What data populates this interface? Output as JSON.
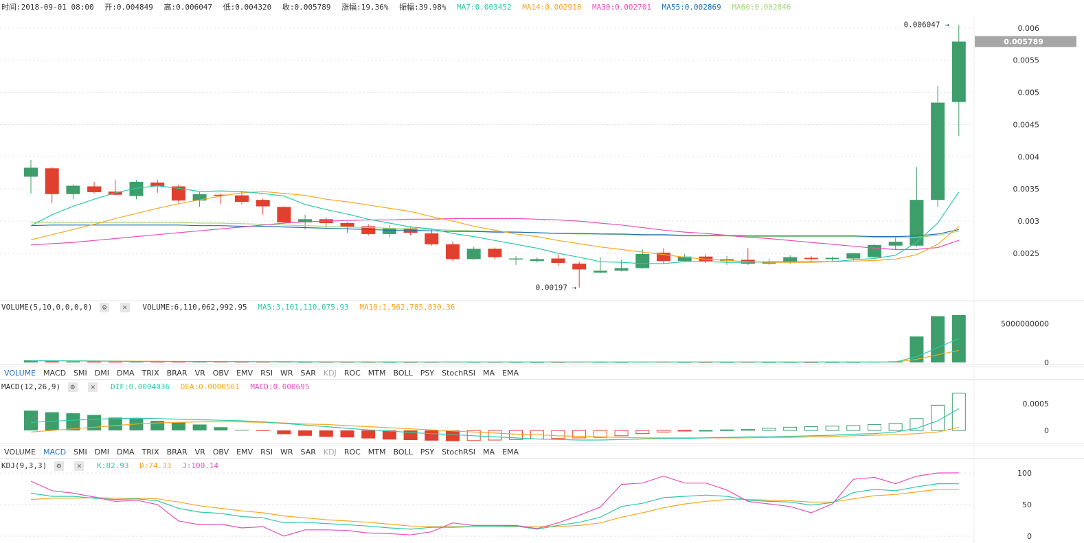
{
  "info": {
    "time": "时间:2018-09-01 08:00",
    "open": "开:0.004849",
    "high": "高:0.006047",
    "low": "低:0.004320",
    "close": "收:0.005789",
    "change": "涨幅:19.36%",
    "amplitude": "振幅:39.98%",
    "ma7": "MA7:0.003452",
    "ma14": "MA14:0.002918",
    "ma30": "MA30:0.002701",
    "ma55": "MA55:0.002869",
    "ma60": "MA60:0.002846"
  },
  "colors": {
    "up": "#3d9e6b",
    "down": "#e0402e",
    "ma7": "#2ec7a8",
    "ma14": "#f5a623",
    "ma30": "#e74fbb",
    "ma55": "#1f6fb5",
    "ma60": "#a3d977",
    "kdj_k": "#2ec7a8",
    "kdj_d": "#f5a623",
    "kdj_j": "#e74fbb"
  },
  "volume_panel": {
    "title": "VOLUME(5,10,0,0,0,0)",
    "volume": "VOLUME:6,110,062,992.95",
    "ma5": "MA5:3,101,110,075.93",
    "ma10": "MA10:1,562,785,830.36"
  },
  "macd_panel": {
    "title": "MACD(12,26,9)",
    "dif": "DIF:0.0004036",
    "dea": "DEA:0.0000561",
    "macd": "MACD:0.000695"
  },
  "kdj_panel": {
    "title": "KDJ(9,3,3)",
    "k": "K:82.93",
    "d": "D:74.33",
    "j": "J:100.14"
  },
  "tabs1": [
    "VOLUME",
    "MACD",
    "SMI",
    "DMI",
    "DMA",
    "TRIX",
    "BRAR",
    "VR",
    "OBV",
    "EMV",
    "RSI",
    "WR",
    "SAR",
    "KDJ",
    "ROC",
    "MTM",
    "BOLL",
    "PSY",
    "StochRSI",
    "MA",
    "EMA"
  ],
  "tabs1_active": "VOLUME",
  "tabs2": [
    "VOLUME",
    "MACD",
    "SMI",
    "DMI",
    "DMA",
    "TRIX",
    "BRAR",
    "VR",
    "OBV",
    "EMV",
    "RSI",
    "WR",
    "SAR",
    "KDJ",
    "ROC",
    "MTM",
    "BOLL",
    "PSY",
    "StochRSI",
    "MA",
    "EMA"
  ],
  "tabs2_active": "MACD",
  "tabs_disabled": [
    "KDJ"
  ],
  "icons": {
    "settings": "gear-icon",
    "close": "close-icon"
  },
  "chart_data": [
    {
      "type": "candlestick",
      "y_ticks": [
        "0.0025",
        "0.003",
        "0.0035",
        "0.004",
        "0.0045",
        "0.005",
        "0.0055",
        "0.006"
      ],
      "ylim": [
        0.00185,
        0.0062
      ],
      "current_price": "0.005789",
      "max_label": "0.006047",
      "min_label": "0.00197",
      "candles": [
        {
          "o": 0.00369,
          "h": 0.00395,
          "l": 0.00343,
          "c": 0.00383
        },
        {
          "o": 0.00382,
          "h": 0.00384,
          "l": 0.00328,
          "c": 0.00342
        },
        {
          "o": 0.00342,
          "h": 0.00357,
          "l": 0.00334,
          "c": 0.00355
        },
        {
          "o": 0.00354,
          "h": 0.00361,
          "l": 0.00343,
          "c": 0.00345
        },
        {
          "o": 0.00346,
          "h": 0.00364,
          "l": 0.0034,
          "c": 0.00341
        },
        {
          "o": 0.00339,
          "h": 0.00364,
          "l": 0.00334,
          "c": 0.00361
        },
        {
          "o": 0.0036,
          "h": 0.00364,
          "l": 0.00344,
          "c": 0.00354
        },
        {
          "o": 0.00354,
          "h": 0.00357,
          "l": 0.00328,
          "c": 0.00332
        },
        {
          "o": 0.00332,
          "h": 0.00345,
          "l": 0.00322,
          "c": 0.00342
        },
        {
          "o": 0.00341,
          "h": 0.00343,
          "l": 0.00327,
          "c": 0.0034
        },
        {
          "o": 0.0034,
          "h": 0.00347,
          "l": 0.00326,
          "c": 0.0033
        },
        {
          "o": 0.00333,
          "h": 0.00335,
          "l": 0.0031,
          "c": 0.00323
        },
        {
          "o": 0.00322,
          "h": 0.00323,
          "l": 0.00296,
          "c": 0.00298
        },
        {
          "o": 0.00298,
          "h": 0.0031,
          "l": 0.00287,
          "c": 0.00303
        },
        {
          "o": 0.00303,
          "h": 0.00306,
          "l": 0.0029,
          "c": 0.00297
        },
        {
          "o": 0.00297,
          "h": 0.00299,
          "l": 0.00282,
          "c": 0.00291
        },
        {
          "o": 0.00292,
          "h": 0.00295,
          "l": 0.00278,
          "c": 0.0028
        },
        {
          "o": 0.0028,
          "h": 0.00294,
          "l": 0.00275,
          "c": 0.00289
        },
        {
          "o": 0.00289,
          "h": 0.00292,
          "l": 0.00278,
          "c": 0.00282
        },
        {
          "o": 0.00281,
          "h": 0.00287,
          "l": 0.00262,
          "c": 0.00264
        },
        {
          "o": 0.00264,
          "h": 0.00268,
          "l": 0.00238,
          "c": 0.00241
        },
        {
          "o": 0.00241,
          "h": 0.0026,
          "l": 0.0024,
          "c": 0.00257
        },
        {
          "o": 0.00257,
          "h": 0.00259,
          "l": 0.0024,
          "c": 0.00244
        },
        {
          "o": 0.00242,
          "h": 0.00246,
          "l": 0.00232,
          "c": 0.00242
        },
        {
          "o": 0.00238,
          "h": 0.00244,
          "l": 0.00236,
          "c": 0.00241
        },
        {
          "o": 0.00242,
          "h": 0.00248,
          "l": 0.0023,
          "c": 0.00235
        },
        {
          "o": 0.00234,
          "h": 0.00237,
          "l": 0.00197,
          "c": 0.00225
        },
        {
          "o": 0.0022,
          "h": 0.00244,
          "l": 0.00219,
          "c": 0.00223
        },
        {
          "o": 0.00223,
          "h": 0.0024,
          "l": 0.00222,
          "c": 0.00227
        },
        {
          "o": 0.00227,
          "h": 0.00256,
          "l": 0.00226,
          "c": 0.00249
        },
        {
          "o": 0.00251,
          "h": 0.00258,
          "l": 0.00234,
          "c": 0.00238
        },
        {
          "o": 0.00238,
          "h": 0.00249,
          "l": 0.00237,
          "c": 0.00245
        },
        {
          "o": 0.00245,
          "h": 0.00248,
          "l": 0.00235,
          "c": 0.00238
        },
        {
          "o": 0.00238,
          "h": 0.00246,
          "l": 0.00232,
          "c": 0.00241
        },
        {
          "o": 0.0024,
          "h": 0.00258,
          "l": 0.00232,
          "c": 0.00234
        },
        {
          "o": 0.00234,
          "h": 0.00242,
          "l": 0.00232,
          "c": 0.00237
        },
        {
          "o": 0.00237,
          "h": 0.00247,
          "l": 0.00234,
          "c": 0.00244
        },
        {
          "o": 0.00243,
          "h": 0.00246,
          "l": 0.00238,
          "c": 0.00241
        },
        {
          "o": 0.00241,
          "h": 0.00245,
          "l": 0.00238,
          "c": 0.00243
        },
        {
          "o": 0.00242,
          "h": 0.00251,
          "l": 0.00239,
          "c": 0.0025
        },
        {
          "o": 0.00244,
          "h": 0.00264,
          "l": 0.00243,
          "c": 0.00263
        },
        {
          "o": 0.00262,
          "h": 0.00275,
          "l": 0.00256,
          "c": 0.00268
        },
        {
          "o": 0.00262,
          "h": 0.00384,
          "l": 0.0026,
          "c": 0.00333
        },
        {
          "o": 0.00333,
          "h": 0.0051,
          "l": 0.00322,
          "c": 0.00484
        },
        {
          "o": 0.00485,
          "h": 0.006047,
          "l": 0.00432,
          "c": 0.005789
        }
      ],
      "ma7": [
        0.00293,
        0.0031,
        0.00323,
        0.00334,
        0.00344,
        0.00351,
        0.00355,
        0.00351,
        0.00346,
        0.00347,
        0.00346,
        0.00343,
        0.00339,
        0.00326,
        0.00318,
        0.00311,
        0.00303,
        0.00297,
        0.00291,
        0.00288,
        0.00281,
        0.00276,
        0.0027,
        0.00264,
        0.00258,
        0.0025,
        0.00244,
        0.00237,
        0.00236,
        0.00234,
        0.00234,
        0.00237,
        0.00237,
        0.00236,
        0.00236,
        0.00237,
        0.00237,
        0.00237,
        0.00237,
        0.0024,
        0.00242,
        0.00247,
        0.00267,
        0.00297,
        0.003452
      ],
      "ma14": [
        0.00271,
        0.00279,
        0.00287,
        0.00295,
        0.00304,
        0.00312,
        0.0032,
        0.00327,
        0.00333,
        0.00339,
        0.00344,
        0.00346,
        0.00343,
        0.0034,
        0.00334,
        0.0033,
        0.00325,
        0.0032,
        0.00315,
        0.00307,
        0.003,
        0.00292,
        0.00286,
        0.0028,
        0.00276,
        0.0027,
        0.00265,
        0.0026,
        0.00256,
        0.00252,
        0.00248,
        0.00244,
        0.00241,
        0.00239,
        0.00237,
        0.00236,
        0.00236,
        0.00236,
        0.00237,
        0.00238,
        0.00239,
        0.00241,
        0.00248,
        0.00264,
        0.002918
      ],
      "ma30": [
        0.00263,
        0.00265,
        0.00267,
        0.0027,
        0.00273,
        0.00276,
        0.00279,
        0.00282,
        0.00285,
        0.00288,
        0.00291,
        0.00294,
        0.00297,
        0.00299,
        0.003,
        0.00301,
        0.00302,
        0.00302,
        0.00303,
        0.00303,
        0.00304,
        0.00304,
        0.00304,
        0.00304,
        0.00303,
        0.00302,
        0.003,
        0.00297,
        0.00294,
        0.0029,
        0.00286,
        0.00283,
        0.00281,
        0.00278,
        0.00275,
        0.00273,
        0.0027,
        0.00267,
        0.00264,
        0.00261,
        0.00258,
        0.00256,
        0.00256,
        0.00259,
        0.002701
      ],
      "ma55": [
        0.00293,
        0.00294,
        0.00294,
        0.00294,
        0.00294,
        0.00294,
        0.00294,
        0.00294,
        0.00293,
        0.00293,
        0.00292,
        0.00292,
        0.00291,
        0.0029,
        0.00289,
        0.00288,
        0.00287,
        0.00286,
        0.00286,
        0.00285,
        0.00284,
        0.00284,
        0.00283,
        0.00283,
        0.00282,
        0.00281,
        0.00281,
        0.0028,
        0.0028,
        0.00279,
        0.00279,
        0.00278,
        0.00278,
        0.00278,
        0.00277,
        0.00277,
        0.00277,
        0.00277,
        0.00277,
        0.00277,
        0.00276,
        0.00276,
        0.00277,
        0.0028,
        0.002869
      ],
      "ma60": [
        0.00298,
        0.00298,
        0.00298,
        0.00298,
        0.00298,
        0.00298,
        0.00298,
        0.00298,
        0.00297,
        0.00297,
        0.00296,
        0.00295,
        0.00294,
        0.00293,
        0.00292,
        0.00291,
        0.0029,
        0.00289,
        0.00288,
        0.00287,
        0.00286,
        0.00285,
        0.00284,
        0.00283,
        0.00282,
        0.00281,
        0.0028,
        0.0028,
        0.00279,
        0.00278,
        0.00278,
        0.00277,
        0.00277,
        0.00277,
        0.00276,
        0.00276,
        0.00276,
        0.00276,
        0.00276,
        0.00276,
        0.00275,
        0.00275,
        0.00275,
        0.00278,
        0.002846
      ]
    },
    {
      "type": "bar",
      "title": "VOLUME",
      "y_ticks": [
        "0",
        "5000000000"
      ],
      "ylim": [
        0,
        6200000000
      ],
      "volume": [
        280000000.0,
        160000000.0,
        130000000.0,
        120000000.0,
        110000000.0,
        130000000.0,
        120000000.0,
        120000000.0,
        110000000.0,
        90000000.0,
        80000000.0,
        80000000.0,
        90000000.0,
        60000000.0,
        60000000.0,
        60000000.0,
        60000000.0,
        50000000.0,
        50000000.0,
        60000000.0,
        80000000.0,
        60000000.0,
        60000000.0,
        50000000.0,
        40000000.0,
        50000000.0,
        80000000.0,
        60000000.0,
        50000000.0,
        80000000.0,
        70000000.0,
        50000000.0,
        50000000.0,
        50000000.0,
        60000000.0,
        40000000.0,
        50000000.0,
        40000000.0,
        40000000.0,
        50000000.0,
        80000000.0,
        150000000.0,
        3350000000.0,
        5970000000.0,
        6110000000.0
      ],
      "ma5": [
        240000000.0,
        220000000.0,
        200000000.0,
        180000000.0,
        160000000.0,
        130000000.0,
        120000000.0,
        120000000.0,
        120000000.0,
        110000000.0,
        100000000.0,
        90000000.0,
        90000000.0,
        80000000.0,
        70000000.0,
        70000000.0,
        60000000.0,
        60000000.0,
        60000000.0,
        60000000.0,
        60000000.0,
        60000000.0,
        60000000.0,
        60000000.0,
        60000000.0,
        60000000.0,
        60000000.0,
        60000000.0,
        60000000.0,
        60000000.0,
        60000000.0,
        60000000.0,
        60000000.0,
        60000000.0,
        60000000.0,
        60000000.0,
        50000000.0,
        50000000.0,
        50000000.0,
        50000000.0,
        50000000.0,
        70000000.0,
        740000000.0,
        1900000000.0,
        3100000000.0
      ],
      "ma10": [
        220000000.0,
        210000000.0,
        200000000.0,
        190000000.0,
        180000000.0,
        160000000.0,
        140000000.0,
        130000000.0,
        120000000.0,
        120000000.0,
        110000000.0,
        100000000.0,
        100000000.0,
        90000000.0,
        80000000.0,
        80000000.0,
        70000000.0,
        70000000.0,
        60000000.0,
        60000000.0,
        60000000.0,
        60000000.0,
        60000000.0,
        60000000.0,
        60000000.0,
        60000000.0,
        60000000.0,
        60000000.0,
        60000000.0,
        60000000.0,
        60000000.0,
        60000000.0,
        60000000.0,
        60000000.0,
        60000000.0,
        60000000.0,
        60000000.0,
        60000000.0,
        50000000.0,
        50000000.0,
        50000000.0,
        60000000.0,
        400000000.0,
        990000000.0,
        1560000000.0
      ]
    },
    {
      "type": "bar",
      "title": "MACD",
      "y_ticks": [
        "0",
        "0.0005"
      ],
      "ylim": [
        -0.0002,
        0.00074
      ],
      "macd": [
        0.00037,
        0.00034,
        0.00032,
        0.00029,
        0.00024,
        0.00022,
        0.00018,
        0.00015,
        0.00011,
        6e-05,
        1e-05,
        -1e-05,
        -7e-05,
        -0.0001,
        -0.00012,
        -0.00013,
        -0.00015,
        -0.00017,
        -0.00018,
        -0.00019,
        -0.0002,
        -0.00019,
        -0.00018,
        -0.00017,
        -0.00016,
        -0.00015,
        -0.00014,
        -0.00013,
        -0.0001,
        -6e-05,
        -3e-05,
        -1e-05,
        0.0,
        1e-05,
        2e-05,
        4e-05,
        6e-05,
        7e-05,
        8e-05,
        9e-05,
        0.00011,
        0.00013,
        0.00022,
        0.00047,
        0.000695
      ],
      "dif": [
        0.00015,
        0.00017,
        0.00019,
        0.00021,
        0.00022,
        0.00023,
        0.00022,
        0.00021,
        0.0002,
        0.00019,
        0.00018,
        0.00016,
        0.00013,
        0.0001,
        7e-05,
        4e-05,
        1e-05,
        -1e-05,
        -4e-05,
        -6e-05,
        -8e-05,
        -0.0001,
        -0.00012,
        -0.00014,
        -0.00016,
        -0.00017,
        -0.00018,
        -0.00018,
        -0.00017,
        -0.00016,
        -0.00015,
        -0.00015,
        -0.00014,
        -0.00013,
        -0.00012,
        -0.00012,
        -0.00011,
        -0.0001,
        -9e-05,
        -7e-05,
        -6e-05,
        -3e-05,
        4e-05,
        0.00018,
        0.0004036
      ],
      "dea": [
        -3e-05,
        0.0,
        3e-05,
        6e-05,
        9e-05,
        0.00012,
        0.00014,
        0.00015,
        0.00016,
        0.00016,
        0.00016,
        0.00015,
        0.00014,
        0.00012,
        0.00011,
        9e-05,
        7e-05,
        5e-05,
        3e-05,
        1e-05,
        -1e-05,
        -3e-05,
        -5e-05,
        -7e-05,
        -8e-05,
        -0.0001,
        -0.00011,
        -0.00012,
        -0.00013,
        -0.00014,
        -0.00014,
        -0.00014,
        -0.00014,
        -0.00014,
        -0.00014,
        -0.00013,
        -0.00013,
        -0.00012,
        -0.00011,
        -0.0001,
        -9e-05,
        -8e-05,
        -6e-05,
        -3e-05,
        5.61e-05
      ]
    },
    {
      "type": "line",
      "title": "KDJ",
      "y_ticks": [
        "0",
        "50",
        "100"
      ],
      "ylim": [
        0,
        100
      ],
      "k": [
        68,
        63,
        63,
        60,
        58,
        59,
        56,
        44,
        38,
        36,
        31,
        29,
        21,
        22,
        20,
        18,
        16,
        13,
        11,
        14,
        14,
        15,
        15,
        16,
        11,
        17,
        22,
        30,
        47,
        52,
        61,
        63,
        65,
        63,
        57,
        55,
        54,
        49,
        53,
        69,
        74,
        72,
        78,
        83,
        82.93
      ],
      "d": [
        58,
        60,
        60,
        61,
        60,
        60,
        59,
        54,
        48,
        44,
        40,
        37,
        32,
        29,
        26,
        24,
        22,
        19,
        16,
        15,
        15,
        15,
        15,
        15,
        15,
        15,
        17,
        21,
        30,
        37,
        45,
        51,
        55,
        58,
        58,
        57,
        56,
        54,
        54,
        59,
        64,
        66,
        70,
        74,
        74.33
      ],
      "j": [
        87,
        72,
        68,
        62,
        55,
        57,
        50,
        24,
        18,
        19,
        13,
        15,
        0,
        10,
        10,
        9,
        5,
        4,
        2,
        7,
        21,
        17,
        17,
        17,
        12,
        21,
        33,
        46,
        82,
        84,
        95,
        84,
        84,
        73,
        55,
        51,
        47,
        37,
        51,
        90,
        93,
        83,
        95,
        100,
        100.14
      ]
    }
  ]
}
